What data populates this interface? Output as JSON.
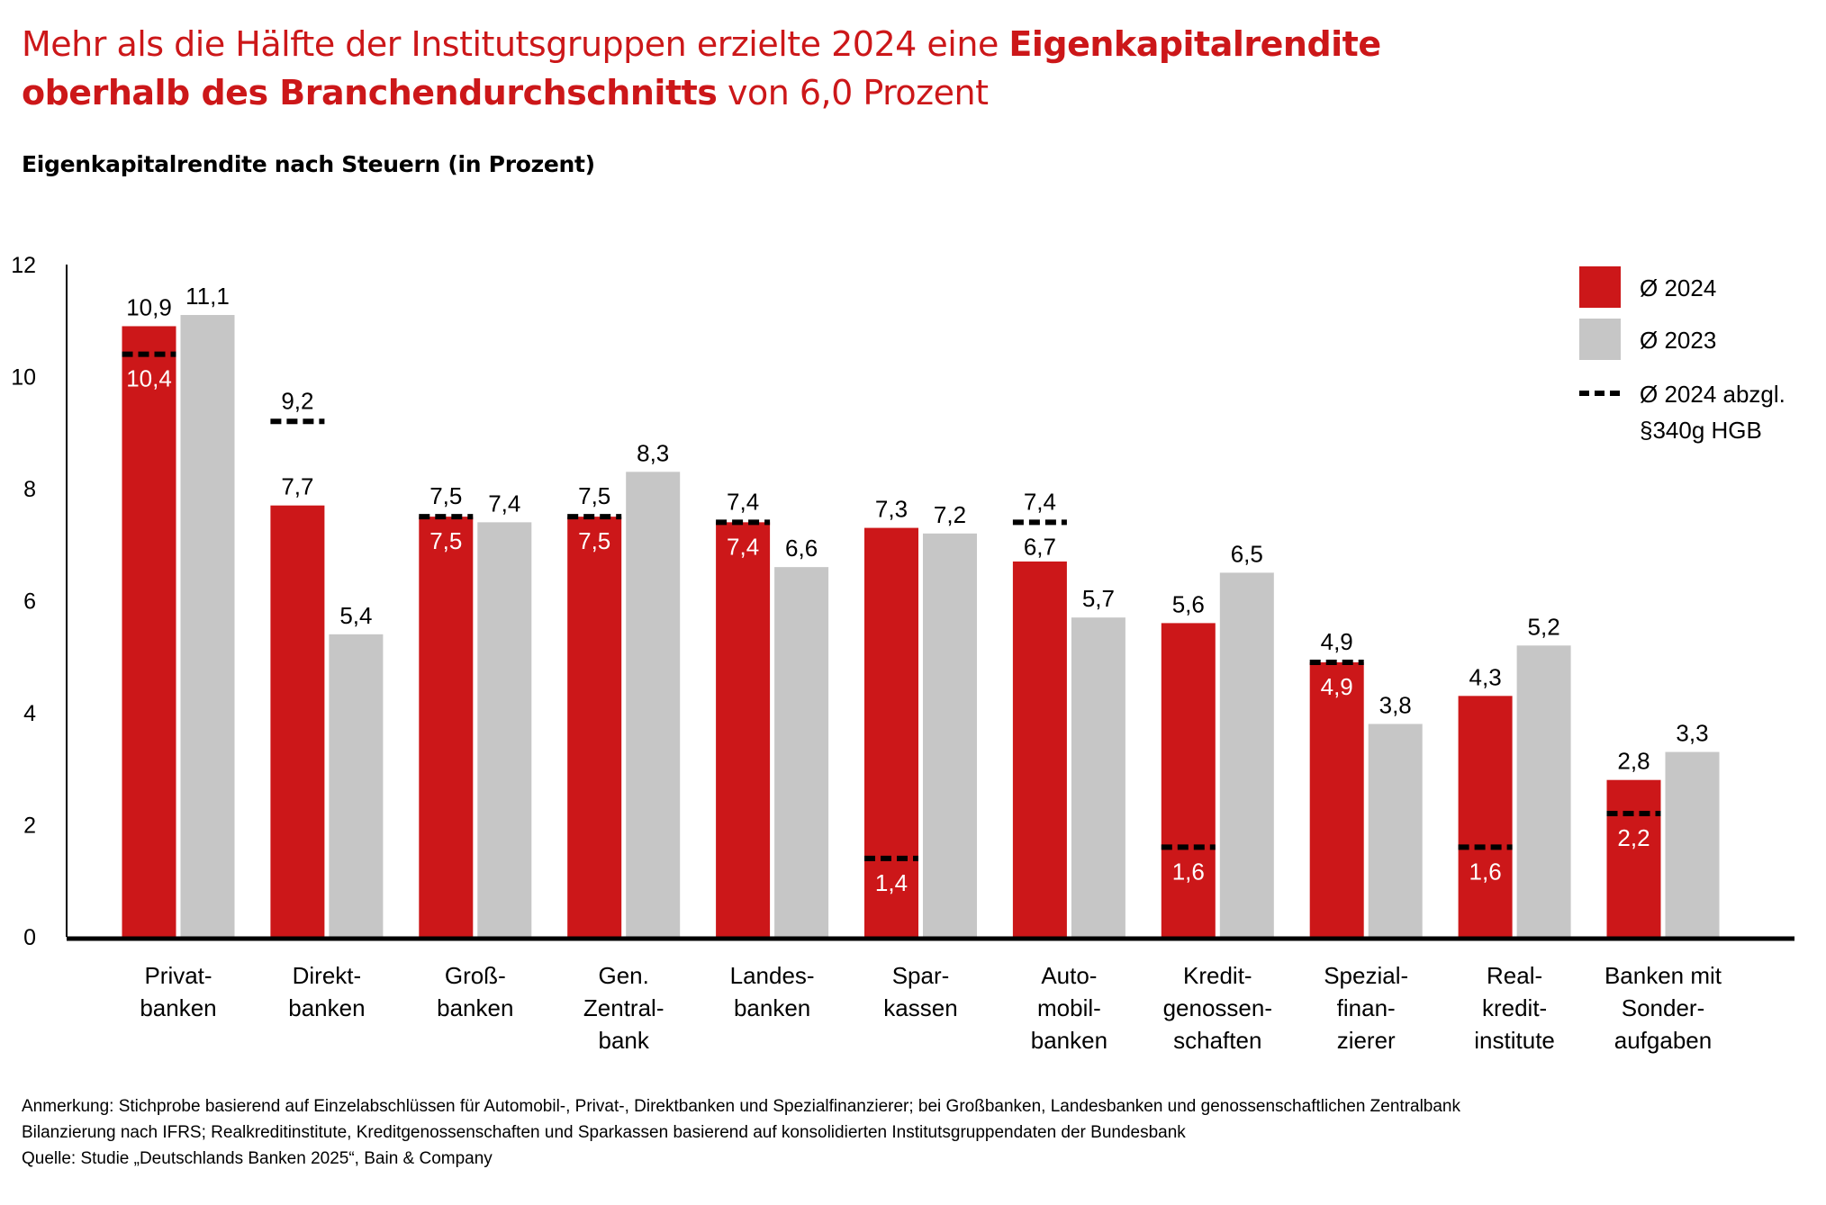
{
  "title": {
    "line1_regular": "Mehr als die Hälfte der Institutsgruppen erzielte 2024 eine ",
    "line1_bold": "Eigenkapitalrendite",
    "line2_bold": "oberhalb des Branchendurchschnitts",
    "line2_regular": " von 6,0 Prozent"
  },
  "notes": {
    "line1": "Anmerkung: Stichprobe basierend auf Einzelabschlüssen für Automobil-, Privat-, Direktbanken und Spezialfinanzierer; bei Großbanken, Landesbanken und genossenschaftlichen Zentralbank",
    "line2": "Bilanzierung nach IFRS; Realkreditinstitute, Kreditgenossenschaften und Sparkassen basierend auf konsolidierten Institutsgruppendaten der Bundesbank",
    "source": "Quelle: Studie „Deutschlands Banken 2025“, Bain & Company"
  },
  "colors": {
    "series_2024": "#cc1719",
    "series_2023": "#c6c6c6",
    "adjusted_line": "#000000",
    "title": "#cc1719"
  },
  "chart_data": {
    "type": "bar",
    "title": "Eigenkapitalrendite nach Steuern (in Prozent)",
    "xlabel": "",
    "ylabel": "",
    "ylim": [
      0,
      12
    ],
    "yticks": [
      0,
      2,
      4,
      6,
      8,
      10,
      12
    ],
    "grid": false,
    "legend_position": "top-right",
    "categories": [
      [
        "Privat-",
        "banken"
      ],
      [
        "Direkt-",
        "banken"
      ],
      [
        "Groß-",
        "banken"
      ],
      [
        "Gen.",
        "Zentral-",
        "bank"
      ],
      [
        "Landes-",
        "banken"
      ],
      [
        "Spar-",
        "kassen"
      ],
      [
        "Auto-",
        "mobil-",
        "banken"
      ],
      [
        "Kredit-",
        "genossen-",
        "schaften"
      ],
      [
        "Spezial-",
        "finan-",
        "zierer"
      ],
      [
        "Real-",
        "kredit-",
        "institute"
      ],
      [
        "Banken mit",
        "Sonder-",
        "aufgaben"
      ]
    ],
    "series": [
      {
        "name": "Ø 2024",
        "type": "bar",
        "values": [
          10.9,
          7.7,
          7.5,
          7.5,
          7.4,
          7.3,
          6.7,
          5.6,
          4.9,
          4.3,
          2.8
        ],
        "labels": [
          "10,9",
          "7,7",
          "7,5",
          "7,5",
          "7,4",
          "7,3",
          "6,7",
          "5,6",
          "4,9",
          "4,3",
          "2,8"
        ]
      },
      {
        "name": "Ø 2023",
        "type": "bar",
        "values": [
          11.1,
          5.4,
          7.4,
          8.3,
          6.6,
          7.2,
          5.7,
          6.5,
          3.8,
          5.2,
          3.3
        ],
        "labels": [
          "11,1",
          "5,4",
          "7,4",
          "8,3",
          "6,6",
          "7,2",
          "5,7",
          "6,5",
          "3,8",
          "5,2",
          "3,3"
        ]
      },
      {
        "name": "Ø 2024 abzgl. §340g HGB",
        "type": "dashed-marker",
        "values": [
          10.4,
          9.2,
          7.5,
          7.5,
          7.4,
          1.4,
          7.4,
          1.6,
          4.9,
          1.6,
          2.2
        ],
        "labels": [
          "10,4",
          "9,2",
          "7,5",
          "7,5",
          "7,4",
          "1,4",
          "7,4",
          "1,6",
          "4,9",
          "1,6",
          "2,2"
        ]
      }
    ],
    "legend": [
      {
        "label": "Ø 2024",
        "kind": "swatch",
        "color": "#cc1719"
      },
      {
        "label": "Ø 2023",
        "kind": "swatch",
        "color": "#c6c6c6"
      },
      {
        "label": [
          "Ø 2024 abzgl.",
          "§340g HGB"
        ],
        "kind": "dashed"
      }
    ]
  }
}
